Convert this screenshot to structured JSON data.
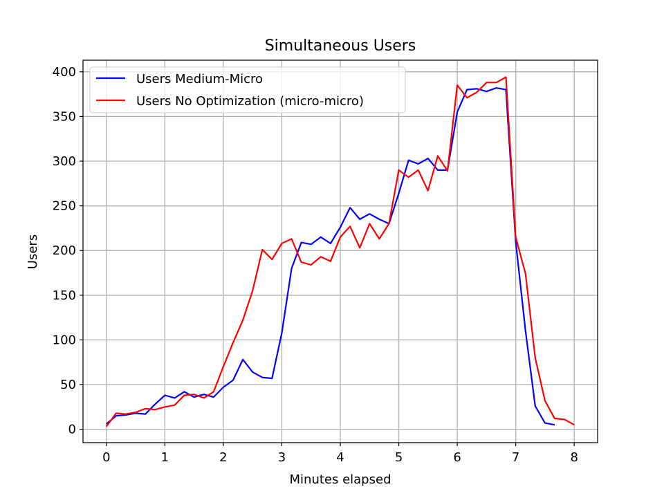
{
  "chart_data": {
    "type": "line",
    "title": "Simultaneous Users",
    "xlabel": "Minutes elapsed",
    "ylabel": "Users",
    "xlim": [
      -0.4,
      8.4
    ],
    "ylim": [
      -15,
      413
    ],
    "xticks": [
      0,
      1,
      2,
      3,
      4,
      5,
      6,
      7,
      8
    ],
    "yticks": [
      0,
      50,
      100,
      150,
      200,
      250,
      300,
      350,
      400
    ],
    "grid": true,
    "legend_position": "top-left",
    "series": [
      {
        "name": "Users Medium-Micro",
        "color": "#0000ff",
        "x": [
          0,
          0.167,
          0.333,
          0.5,
          0.667,
          0.833,
          1.0,
          1.167,
          1.333,
          1.5,
          1.667,
          1.833,
          2.0,
          2.167,
          2.333,
          2.5,
          2.667,
          2.833,
          3.0,
          3.167,
          3.333,
          3.5,
          3.667,
          3.833,
          4.0,
          4.167,
          4.333,
          4.5,
          4.667,
          4.833,
          5.0,
          5.167,
          5.333,
          5.5,
          5.667,
          5.833,
          6.0,
          6.167,
          6.333,
          6.5,
          6.667,
          6.833,
          7.0,
          7.167,
          7.333,
          7.5,
          7.667
        ],
        "y": [
          6,
          15,
          16,
          18,
          17,
          28,
          38,
          35,
          42,
          36,
          39,
          36,
          47,
          55,
          78,
          64,
          58,
          57,
          108,
          180,
          209,
          207,
          215,
          208,
          226,
          248,
          235,
          241,
          235,
          230,
          264,
          301,
          297,
          303,
          290,
          290,
          355,
          380,
          381,
          378,
          382,
          380,
          210,
          110,
          26,
          7,
          5
        ]
      },
      {
        "name": "Users No Optimization (micro-micro)",
        "color": "#ff0000",
        "x": [
          0,
          0.167,
          0.333,
          0.5,
          0.667,
          0.833,
          1.0,
          1.167,
          1.333,
          1.5,
          1.667,
          1.833,
          2.0,
          2.167,
          2.333,
          2.5,
          2.667,
          2.833,
          3.0,
          3.167,
          3.333,
          3.5,
          3.667,
          3.833,
          4.0,
          4.167,
          4.333,
          4.5,
          4.667,
          4.833,
          5.0,
          5.167,
          5.333,
          5.5,
          5.667,
          5.833,
          6.0,
          6.167,
          6.333,
          6.5,
          6.667,
          6.833,
          7.0,
          7.167,
          7.333,
          7.5,
          7.667,
          7.833,
          8.0
        ],
        "y": [
          3,
          18,
          17,
          19,
          23,
          22,
          25,
          27,
          38,
          39,
          35,
          42,
          70,
          97,
          122,
          155,
          201,
          190,
          208,
          213,
          187,
          184,
          193,
          188,
          215,
          227,
          203,
          230,
          213,
          230,
          290,
          282,
          290,
          267,
          306,
          289,
          385,
          371,
          377,
          388,
          388,
          394,
          215,
          174,
          80,
          32,
          12,
          11,
          5
        ]
      }
    ]
  }
}
